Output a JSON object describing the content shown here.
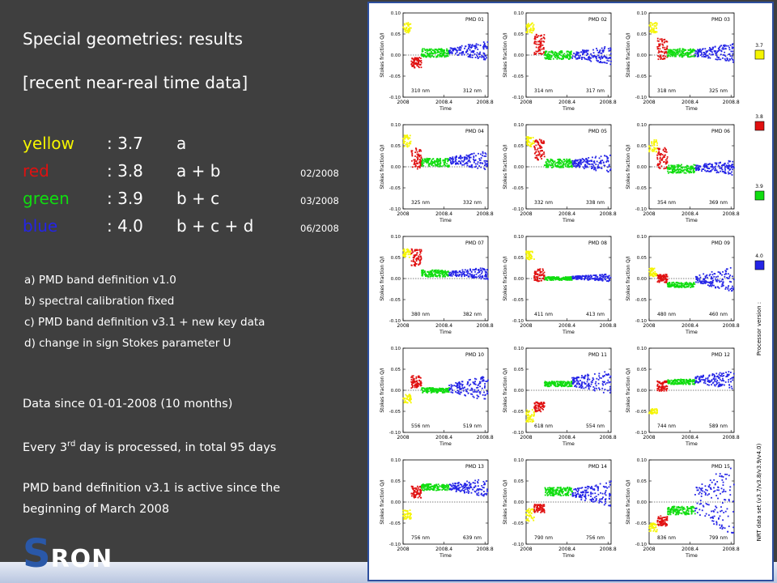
{
  "slide": {
    "title1": "Special geometries: results",
    "title2": "[recent near-real time data]",
    "versions": [
      {
        "color_name": "yellow",
        "color": "#f5f500",
        "version": ": 3.7",
        "defs": "a",
        "date": ""
      },
      {
        "color_name": "red",
        "color": "#e01010",
        "version": ": 3.8",
        "defs": "a + b",
        "date": "02/2008"
      },
      {
        "color_name": "green",
        "color": "#10dd10",
        "version": ": 3.9",
        "defs": "b + c",
        "date": "03/2008"
      },
      {
        "color_name": "blue",
        "color": "#2424e6",
        "version": ": 4.0",
        "defs": "b + c + d",
        "date": "06/2008"
      }
    ],
    "notes": [
      "a)  PMD band definition v1.0",
      "b)  spectral calibration fixed",
      "c)  PMD band definition v3.1 + new key data",
      "d)  change in sign Stokes parameter U"
    ],
    "info1": "Data since 01-01-2008 (10 months)",
    "info2_pre": "Every 3",
    "info2_sup": "rd",
    "info2_post": " day is processed, in total 95 days",
    "info3_line1": "PMD band definition v3.1 is active since the",
    "info3_line2": "beginning of March 2008",
    "logo_s": "S",
    "logo_rest": "RON"
  },
  "chart_data": {
    "type": "scatter",
    "xlabel": "Time",
    "ylabel": "Stokes fraction Q/I",
    "xticks": [
      "2008",
      "2008.4",
      "2008.8"
    ],
    "xlim": [
      2008.0,
      2008.83
    ],
    "ylim": [
      -0.1,
      0.1
    ],
    "yticks": [
      "0.10",
      "0.05",
      "0.00",
      "-0.05",
      "-0.10"
    ],
    "series_colors": {
      "3.7": "#f5f500",
      "3.8": "#e01010",
      "3.9": "#10dd10",
      "4.0": "#2424e6"
    },
    "segments": [
      {
        "version": "3.7",
        "x": [
          2008.0,
          2008.08
        ]
      },
      {
        "version": "3.8",
        "x": [
          2008.08,
          2008.18
        ]
      },
      {
        "version": "3.9",
        "x": [
          2008.18,
          2008.45
        ]
      },
      {
        "version": "4.0",
        "x": [
          2008.45,
          2008.83
        ]
      }
    ],
    "panels": [
      {
        "name": "PMD 01",
        "wl_left": "310 nm",
        "wl_right": "312 nm",
        "levels": [
          0.065,
          -0.018,
          0.005,
          0.01
        ],
        "spread": [
          0.012,
          0.012,
          0.01,
          0.015
        ]
      },
      {
        "name": "PMD 02",
        "wl_left": "314 nm",
        "wl_right": "317 nm",
        "levels": [
          0.065,
          0.025,
          0.0,
          0.0
        ],
        "spread": [
          0.012,
          0.025,
          0.01,
          0.015
        ]
      },
      {
        "name": "PMD 03",
        "wl_left": "318 nm",
        "wl_right": "325 nm",
        "levels": [
          0.065,
          0.015,
          0.005,
          0.005
        ],
        "spread": [
          0.012,
          0.025,
          0.01,
          0.015
        ]
      },
      {
        "name": "PMD 04",
        "wl_left": "325 nm",
        "wl_right": "332 nm",
        "levels": [
          0.06,
          0.02,
          0.01,
          0.015
        ],
        "spread": [
          0.015,
          0.025,
          0.01,
          0.015
        ]
      },
      {
        "name": "PMD 05",
        "wl_left": "332 nm",
        "wl_right": "338 nm",
        "levels": [
          0.06,
          0.04,
          0.008,
          0.008
        ],
        "spread": [
          0.012,
          0.025,
          0.01,
          0.015
        ]
      },
      {
        "name": "PMD 06",
        "wl_left": "354 nm",
        "wl_right": "369 nm",
        "levels": [
          0.05,
          0.02,
          -0.005,
          -0.002
        ],
        "spread": [
          0.015,
          0.025,
          0.01,
          0.012
        ]
      },
      {
        "name": "PMD 07",
        "wl_left": "380 nm",
        "wl_right": "382 nm",
        "levels": [
          0.06,
          0.05,
          0.012,
          0.012
        ],
        "spread": [
          0.01,
          0.02,
          0.008,
          0.01
        ]
      },
      {
        "name": "PMD 08",
        "wl_left": "411 nm",
        "wl_right": "413 nm",
        "levels": [
          0.055,
          0.008,
          0.0,
          0.002
        ],
        "spread": [
          0.01,
          0.015,
          0.004,
          0.006
        ]
      },
      {
        "name": "PMD 09",
        "wl_left": "480 nm",
        "wl_right": "460 nm",
        "levels": [
          0.015,
          0.0,
          -0.015,
          -0.002
        ],
        "spread": [
          0.01,
          0.01,
          0.006,
          0.02
        ]
      },
      {
        "name": "PMD 10",
        "wl_left": "556 nm",
        "wl_right": "519 nm",
        "levels": [
          -0.02,
          0.02,
          0.0,
          0.005
        ],
        "spread": [
          0.01,
          0.015,
          0.006,
          0.02
        ]
      },
      {
        "name": "PMD 11",
        "wl_left": "618 nm",
        "wl_right": "554 nm",
        "levels": [
          -0.06,
          -0.04,
          0.015,
          0.02
        ],
        "spread": [
          0.015,
          0.012,
          0.006,
          0.02
        ]
      },
      {
        "name": "PMD 12",
        "wl_left": "744 nm",
        "wl_right": "589 nm",
        "levels": [
          -0.05,
          0.01,
          0.02,
          0.025
        ],
        "spread": [
          0.006,
          0.012,
          0.006,
          0.015
        ]
      },
      {
        "name": "PMD 13",
        "wl_left": "756 nm",
        "wl_right": "639 nm",
        "levels": [
          -0.03,
          0.025,
          0.035,
          0.035
        ],
        "spread": [
          0.012,
          0.015,
          0.008,
          0.015
        ]
      },
      {
        "name": "PMD 14",
        "wl_left": "790 nm",
        "wl_right": "756 nm",
        "levels": [
          -0.03,
          -0.015,
          0.025,
          0.02
        ],
        "spread": [
          0.015,
          0.01,
          0.01,
          0.02
        ]
      },
      {
        "name": "PMD 15",
        "wl_left": "836 nm",
        "wl_right": "799 nm",
        "levels": [
          -0.06,
          -0.045,
          -0.02,
          0.005
        ],
        "spread": [
          0.01,
          0.012,
          0.01,
          0.06
        ]
      }
    ],
    "legend": [
      {
        "label": "3.7",
        "color": "#f5f500"
      },
      {
        "label": "3.8",
        "color": "#e01010"
      },
      {
        "label": "3.9",
        "color": "#10dd10"
      },
      {
        "label": "4.0",
        "color": "#2424e6"
      }
    ],
    "side_label_top": "Processor version :",
    "side_label_bottom": "NRT data set (v3.7/v3.8/v3.9/v4.0)"
  }
}
